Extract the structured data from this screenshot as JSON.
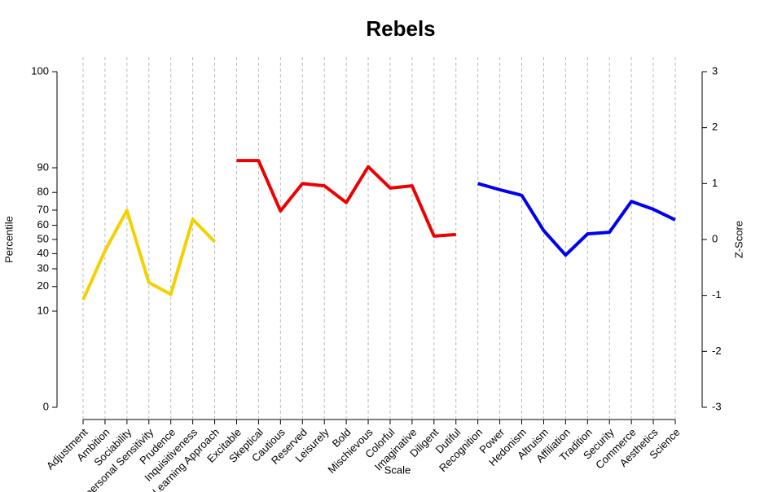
{
  "chart_data": {
    "type": "line",
    "title": "Rebels",
    "x_label": "Scale",
    "y_label": "Percentile",
    "y2_label": "Z-Score",
    "categories": [
      "Adjustment",
      "Ambition",
      "Sociability",
      "Interpersonal Sensitivity",
      "Prudence",
      "Inquisitiveness",
      "Learning Approach",
      "Excitable",
      "Skeptical",
      "Cautious",
      "Reserved",
      "Leisurely",
      "Bold",
      "Mischievous",
      "Colorful",
      "Imaginative",
      "Diligent",
      "Dutiful",
      "Recognition",
      "Power",
      "Hedonism",
      "Altruism",
      "Affiliation",
      "Tradition",
      "Security",
      "Commerce",
      "Aesthetics",
      "Science"
    ],
    "ylim": [
      0,
      100
    ],
    "yscale": "probit",
    "yticks": [
      0,
      10,
      20,
      30,
      40,
      50,
      60,
      70,
      80,
      90,
      100
    ],
    "y2lim": [
      -3,
      3
    ],
    "y2ticks": [
      -3,
      -2,
      -1,
      0,
      1,
      2,
      3
    ],
    "grid": true,
    "series": [
      {
        "color": "#f5d000",
        "axis": "y2",
        "values": [
          -1.08,
          -0.2,
          0.52,
          -0.77,
          -0.98,
          0.36,
          -0.04,
          null,
          null,
          null,
          null,
          null,
          null,
          null,
          null,
          null,
          null,
          null,
          null,
          null,
          null,
          null,
          null,
          null,
          null,
          null,
          null,
          null
        ]
      },
      {
        "color": "#ee0000",
        "axis": "y2",
        "values": [
          null,
          null,
          null,
          null,
          null,
          null,
          null,
          1.41,
          1.41,
          0.51,
          1.0,
          0.96,
          0.66,
          1.3,
          0.92,
          0.96,
          0.06,
          0.09,
          null,
          null,
          null,
          null,
          null,
          null,
          null,
          null,
          null,
          null
        ]
      },
      {
        "color": "#0000ee",
        "axis": "y2",
        "values": [
          null,
          null,
          null,
          null,
          null,
          null,
          null,
          null,
          null,
          null,
          null,
          null,
          null,
          null,
          null,
          null,
          null,
          null,
          1.0,
          0.89,
          0.79,
          0.16,
          -0.28,
          0.1,
          0.13,
          0.68,
          0.54,
          0.35
        ]
      }
    ]
  }
}
